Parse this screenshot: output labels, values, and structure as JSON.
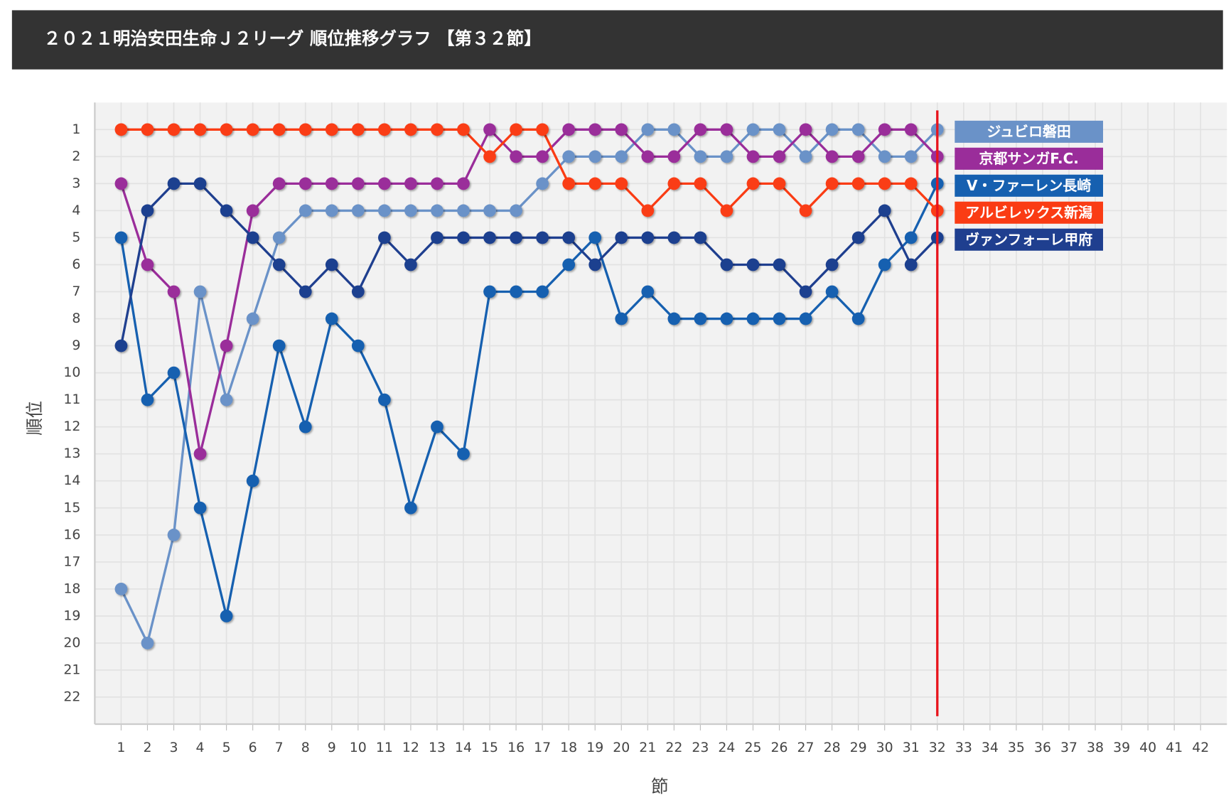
{
  "chart_data": {
    "type": "line",
    "title": "２０２１明治安田生命Ｊ２リーグ 順位推移グラフ 【第３２節】",
    "x_label": "節",
    "y_label": "順位",
    "x": [
      1,
      2,
      3,
      4,
      5,
      6,
      7,
      8,
      9,
      10,
      11,
      12,
      13,
      14,
      15,
      16,
      17,
      18,
      19,
      20,
      21,
      22,
      23,
      24,
      25,
      26,
      27,
      28,
      29,
      30,
      31,
      32,
      33,
      34,
      35,
      36,
      37,
      38,
      39,
      40,
      41,
      42
    ],
    "xlim": [
      0,
      43
    ],
    "ylim": [
      0,
      23
    ],
    "y_reversed": true,
    "grid": true,
    "xticks": [
      1,
      2,
      3,
      4,
      5,
      6,
      7,
      8,
      9,
      10,
      11,
      12,
      13,
      14,
      15,
      16,
      17,
      18,
      19,
      20,
      21,
      22,
      23,
      24,
      25,
      26,
      27,
      28,
      29,
      30,
      31,
      32,
      33,
      34,
      35,
      36,
      37,
      38,
      39,
      40,
      41,
      42
    ],
    "yticks": [
      1,
      2,
      3,
      4,
      5,
      6,
      7,
      8,
      9,
      10,
      11,
      12,
      13,
      14,
      15,
      16,
      17,
      18,
      19,
      20,
      21,
      22
    ],
    "marker_line": {
      "x": 32,
      "color": "#e8141c"
    },
    "series": [
      {
        "name": "ジュビロ磐田",
        "color": "#6a92c8",
        "values": [
          18,
          20,
          16,
          7,
          11,
          8,
          5,
          4,
          4,
          4,
          4,
          4,
          4,
          4,
          4,
          4,
          3,
          2,
          2,
          2,
          1,
          1,
          2,
          2,
          1,
          1,
          2,
          1,
          1,
          2,
          2,
          1,
          null,
          null,
          null,
          null,
          null,
          null,
          null,
          null,
          null,
          null
        ]
      },
      {
        "name": "京都サンガF.C.",
        "color": "#9a2d9a",
        "values": [
          3,
          6,
          7,
          13,
          9,
          4,
          3,
          3,
          3,
          3,
          3,
          3,
          3,
          3,
          1,
          2,
          2,
          1,
          1,
          1,
          2,
          2,
          1,
          1,
          2,
          2,
          1,
          2,
          2,
          1,
          1,
          2,
          null,
          null,
          null,
          null,
          null,
          null,
          null,
          null,
          null,
          null
        ]
      },
      {
        "name": "V・ファーレン長崎",
        "color": "#1660b0",
        "values": [
          5,
          11,
          10,
          15,
          19,
          14,
          9,
          12,
          8,
          9,
          11,
          15,
          12,
          13,
          7,
          7,
          7,
          6,
          5,
          8,
          7,
          8,
          8,
          8,
          8,
          8,
          8,
          7,
          8,
          6,
          5,
          3,
          null,
          null,
          null,
          null,
          null,
          null,
          null,
          null,
          null,
          null
        ]
      },
      {
        "name": "アルビレックス新潟",
        "color": "#fa3c14",
        "values": [
          1,
          1,
          1,
          1,
          1,
          1,
          1,
          1,
          1,
          1,
          1,
          1,
          1,
          1,
          2,
          1,
          1,
          3,
          3,
          3,
          4,
          3,
          3,
          4,
          3,
          3,
          4,
          3,
          3,
          3,
          3,
          4,
          null,
          null,
          null,
          null,
          null,
          null,
          null,
          null,
          null,
          null
        ]
      },
      {
        "name": "ヴァンフォーレ甲府",
        "color": "#1f3f8f",
        "values": [
          9,
          4,
          3,
          3,
          4,
          5,
          6,
          7,
          6,
          7,
          5,
          6,
          5,
          5,
          5,
          5,
          5,
          5,
          6,
          5,
          5,
          5,
          5,
          6,
          6,
          6,
          7,
          6,
          5,
          4,
          6,
          5,
          null,
          null,
          null,
          null,
          null,
          null,
          null,
          null,
          null,
          null
        ]
      }
    ]
  }
}
